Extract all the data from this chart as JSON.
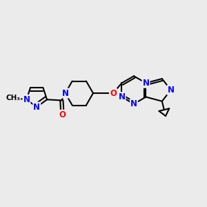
{
  "bg_color": "#ebebeb",
  "bond_color": "#000000",
  "N_color": "#0000ff",
  "O_color": "#ff0000",
  "line_width": 1.5,
  "font_size": 8.5,
  "fig_w": 3.0,
  "fig_h": 3.0,
  "dpi": 100,
  "xlim": [
    -3.5,
    3.5
  ],
  "ylim": [
    -2.0,
    2.0
  ]
}
